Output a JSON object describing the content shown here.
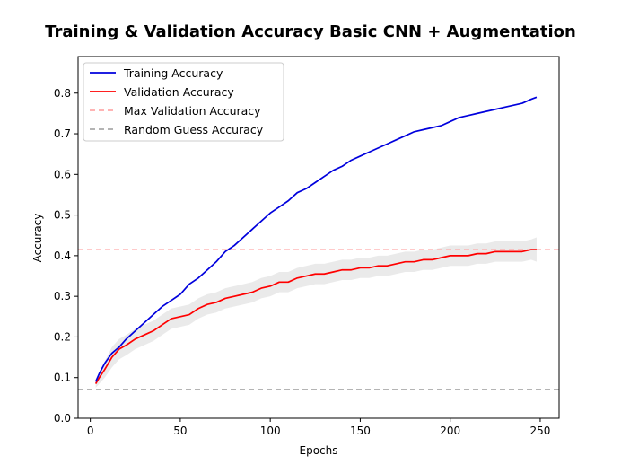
{
  "chart_data": {
    "type": "line",
    "title": "Training & Validation Accuracy Basic CNN + Augmentation",
    "xlabel": "Epochs",
    "ylabel": "Accuracy",
    "xlim": [
      -6.8,
      260.5
    ],
    "ylim": [
      0,
      0.89
    ],
    "x_ticks": [
      0,
      50,
      100,
      150,
      200,
      250
    ],
    "y_ticks": [
      0.0,
      0.1,
      0.2,
      0.3,
      0.4,
      0.5,
      0.6,
      0.7,
      0.8
    ],
    "grid": false,
    "legend_position": "top-left",
    "colors": {
      "training": "#0000dd",
      "validation": "#ff0000",
      "max_validation": "#ffaaaa",
      "random_guess": "#aaaaaa",
      "band_fill": "#dcdcdc"
    },
    "series": [
      {
        "name": "Training Accuracy",
        "style": "solid",
        "x": [
          3,
          5,
          8,
          12,
          16,
          20,
          25,
          30,
          35,
          40,
          45,
          50,
          55,
          60,
          65,
          70,
          75,
          80,
          85,
          90,
          95,
          100,
          105,
          110,
          115,
          120,
          125,
          130,
          135,
          140,
          145,
          150,
          155,
          160,
          165,
          170,
          175,
          180,
          185,
          190,
          195,
          200,
          205,
          210,
          215,
          220,
          225,
          230,
          235,
          240,
          245,
          248
        ],
        "y": [
          0.09,
          0.11,
          0.135,
          0.16,
          0.175,
          0.195,
          0.215,
          0.235,
          0.255,
          0.275,
          0.29,
          0.305,
          0.33,
          0.345,
          0.365,
          0.385,
          0.41,
          0.425,
          0.445,
          0.465,
          0.485,
          0.505,
          0.52,
          0.535,
          0.555,
          0.565,
          0.58,
          0.595,
          0.61,
          0.62,
          0.635,
          0.645,
          0.655,
          0.665,
          0.675,
          0.685,
          0.695,
          0.705,
          0.71,
          0.715,
          0.72,
          0.73,
          0.74,
          0.745,
          0.75,
          0.755,
          0.76,
          0.765,
          0.77,
          0.775,
          0.785,
          0.79
        ]
      },
      {
        "name": "Validation Accuracy",
        "style": "solid",
        "x": [
          3,
          5,
          8,
          12,
          16,
          20,
          25,
          30,
          35,
          40,
          45,
          50,
          55,
          60,
          65,
          70,
          75,
          80,
          85,
          90,
          95,
          100,
          105,
          110,
          115,
          120,
          125,
          130,
          135,
          140,
          145,
          150,
          155,
          160,
          165,
          170,
          175,
          180,
          185,
          190,
          195,
          200,
          205,
          210,
          215,
          220,
          225,
          230,
          235,
          240,
          245,
          248
        ],
        "y": [
          0.085,
          0.1,
          0.12,
          0.15,
          0.17,
          0.18,
          0.195,
          0.205,
          0.215,
          0.23,
          0.245,
          0.25,
          0.255,
          0.27,
          0.28,
          0.285,
          0.295,
          0.3,
          0.305,
          0.31,
          0.32,
          0.325,
          0.335,
          0.335,
          0.345,
          0.35,
          0.355,
          0.355,
          0.36,
          0.365,
          0.365,
          0.37,
          0.37,
          0.375,
          0.375,
          0.38,
          0.385,
          0.385,
          0.39,
          0.39,
          0.395,
          0.4,
          0.4,
          0.4,
          0.405,
          0.405,
          0.41,
          0.41,
          0.41,
          0.41,
          0.415,
          0.415
        ]
      },
      {
        "name": "Max Validation Accuracy",
        "style": "dashed",
        "y_constant": 0.415
      },
      {
        "name": "Random Guess Accuracy",
        "style": "dashed",
        "y_constant": 0.071
      }
    ],
    "validation_band": {
      "x": [
        3,
        5,
        8,
        12,
        16,
        20,
        25,
        30,
        35,
        40,
        45,
        50,
        55,
        60,
        65,
        70,
        75,
        80,
        85,
        90,
        95,
        100,
        105,
        110,
        115,
        120,
        125,
        130,
        135,
        140,
        145,
        150,
        155,
        160,
        165,
        170,
        175,
        180,
        185,
        190,
        195,
        200,
        205,
        210,
        215,
        220,
        225,
        230,
        235,
        240,
        245,
        248
      ],
      "lower": [
        0.075,
        0.085,
        0.1,
        0.125,
        0.145,
        0.155,
        0.17,
        0.18,
        0.19,
        0.205,
        0.22,
        0.225,
        0.23,
        0.245,
        0.255,
        0.26,
        0.27,
        0.275,
        0.28,
        0.285,
        0.295,
        0.3,
        0.31,
        0.31,
        0.32,
        0.325,
        0.33,
        0.33,
        0.335,
        0.34,
        0.34,
        0.345,
        0.345,
        0.35,
        0.35,
        0.355,
        0.36,
        0.36,
        0.365,
        0.365,
        0.37,
        0.375,
        0.375,
        0.375,
        0.38,
        0.38,
        0.385,
        0.385,
        0.385,
        0.385,
        0.39,
        0.385
      ],
      "upper": [
        0.095,
        0.115,
        0.14,
        0.175,
        0.195,
        0.205,
        0.22,
        0.23,
        0.24,
        0.255,
        0.27,
        0.275,
        0.28,
        0.295,
        0.305,
        0.31,
        0.32,
        0.325,
        0.33,
        0.335,
        0.345,
        0.35,
        0.36,
        0.36,
        0.37,
        0.375,
        0.38,
        0.38,
        0.385,
        0.39,
        0.39,
        0.395,
        0.395,
        0.4,
        0.4,
        0.405,
        0.41,
        0.41,
        0.415,
        0.415,
        0.42,
        0.425,
        0.425,
        0.425,
        0.43,
        0.43,
        0.435,
        0.435,
        0.435,
        0.435,
        0.44,
        0.445
      ]
    }
  }
}
